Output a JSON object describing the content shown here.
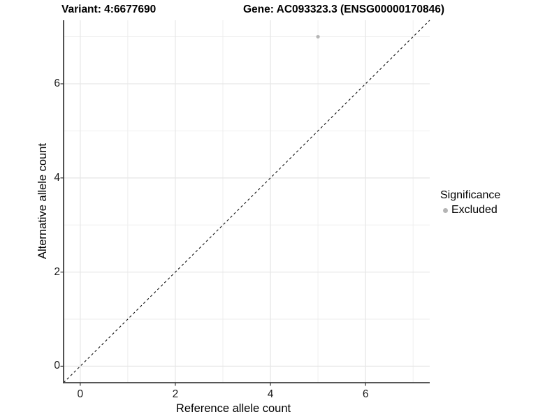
{
  "header": {
    "title_variant": "Variant: 4:6677690",
    "title_gene": "Gene: AC093323.3 (ENSG00000170846)"
  },
  "chart_data": {
    "type": "scatter",
    "title_left": "Variant: 4:6677690",
    "title_right": "Gene: AC093323.3 (ENSG00000170846)",
    "xlabel": "Reference allele count",
    "ylabel": "Alternative allele count",
    "xlim": [
      -0.35,
      7.35
    ],
    "ylim": [
      -0.35,
      7.35
    ],
    "x_ticks": [
      0,
      2,
      4,
      6
    ],
    "y_ticks": [
      0,
      2,
      4,
      6
    ],
    "x_minor_gridlines": [
      1,
      3,
      5,
      7
    ],
    "y_minor_gridlines": [
      1,
      3,
      5,
      7
    ],
    "grid": "on",
    "series": [
      {
        "name": "Excluded",
        "color": "#b5b5b5",
        "points": [
          {
            "x": 5,
            "y": 7
          }
        ]
      }
    ],
    "identity_line": {
      "style": "dashed",
      "color": "#111111",
      "from": [
        -0.35,
        -0.35
      ],
      "to": [
        7.35,
        7.35
      ]
    },
    "legend": {
      "title": "Significance",
      "position": "right",
      "entries": [
        {
          "label": "Excluded",
          "marker": "circle",
          "color": "#b5b5b5"
        }
      ]
    },
    "colors": {
      "major_gridline": "#e7e7e7",
      "minor_gridline": "#ededed",
      "axis_line": "#3f3f3f",
      "tick_mark": "#333333",
      "point": "#b5b5b5"
    }
  }
}
